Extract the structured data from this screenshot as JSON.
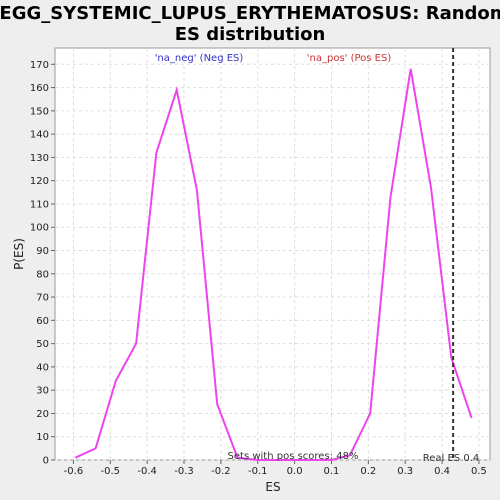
{
  "chart_data": {
    "type": "line",
    "title_line1": "KEGG_SYSTEMIC_LUPUS_ERYTHEMATOSUS: Random",
    "title_line2": "ES distribution",
    "xlabel": "ES",
    "ylabel": "P(ES)",
    "xlim": [
      -0.65,
      0.53
    ],
    "ylim": [
      0,
      177
    ],
    "x_ticks": [
      -0.6,
      -0.5,
      -0.4,
      -0.3,
      -0.2,
      -0.1,
      0.0,
      0.1,
      0.2,
      0.3,
      0.4,
      0.5
    ],
    "x_tick_labels": [
      "-0.6",
      "-0.5",
      "-0.4",
      "-0.3",
      "-0.2",
      "-0.1",
      "0.0",
      "0.1",
      "0.2",
      "0.3",
      "0.4",
      "0.5"
    ],
    "y_ticks": [
      0,
      10,
      20,
      30,
      40,
      50,
      60,
      70,
      80,
      90,
      100,
      110,
      120,
      130,
      140,
      150,
      160,
      170
    ],
    "y_tick_labels": [
      "0",
      "10",
      "20",
      "30",
      "40",
      "50",
      "60",
      "70",
      "80",
      "90",
      "100",
      "110",
      "120",
      "130",
      "140",
      "150",
      "160",
      "170"
    ],
    "grid": true,
    "series": [
      {
        "color": "#ee44ee",
        "x": [
          -0.595,
          -0.54,
          -0.485,
          -0.43,
          -0.375,
          -0.32,
          -0.265,
          -0.21,
          -0.155,
          -0.1,
          0.0,
          0.1,
          0.15,
          0.205,
          0.26,
          0.315,
          0.37,
          0.425,
          0.48
        ],
        "y": [
          1,
          5,
          34,
          50,
          132,
          159,
          116,
          24,
          1,
          0,
          0,
          0,
          2,
          20,
          113,
          168,
          117,
          44,
          18
        ]
      }
    ],
    "legend_neg": "'na_neg' (Neg ES)",
    "legend_pos": "'na_pos' (Pos ES)",
    "real_es_value": 0.43,
    "real_es_label": "Real ES 0.4",
    "sets_text": "Sets with pos scores: 48%"
  }
}
